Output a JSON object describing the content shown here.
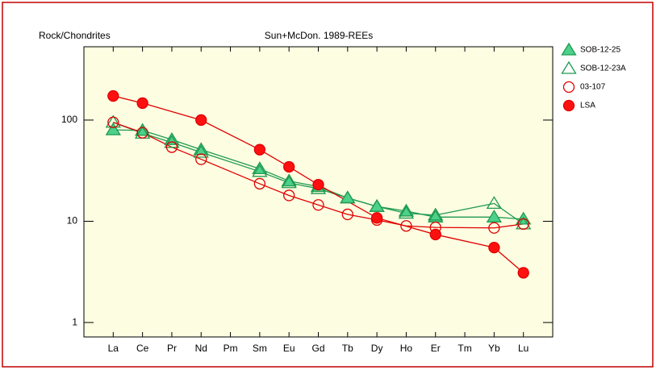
{
  "chart_data": {
    "type": "line",
    "title": "Sun+McDon. 1989-REEs",
    "y_label": "Rock/Chondrites",
    "categories": [
      "La",
      "Ce",
      "Pr",
      "Nd",
      "Pm",
      "Sm",
      "Eu",
      "Gd",
      "Tb",
      "Dy",
      "Ho",
      "Er",
      "Tm",
      "Yb",
      "Lu"
    ],
    "log_y": true,
    "connect_gaps": true,
    "ylim": [
      0.72,
      530
    ],
    "yticks": [
      1,
      10,
      100
    ],
    "series": [
      {
        "name": "SOB-12-25",
        "color": "#1f9a50",
        "fill": "#4cd08a",
        "marker": "triangle",
        "values": [
          80,
          79,
          64,
          51,
          null,
          33,
          25,
          22,
          17,
          14,
          12.6,
          11,
          null,
          11,
          10.5
        ]
      },
      {
        "name": "SOB-12-23A",
        "color": "#1f9a50",
        "fill": "none",
        "marker": "triangle",
        "values": [
          95,
          74,
          60,
          48,
          null,
          31,
          24,
          21,
          17,
          14,
          12,
          11.5,
          null,
          15,
          9.4
        ]
      },
      {
        "name": "03-107",
        "color": "#e00000",
        "fill": "none",
        "marker": "circle",
        "values": [
          95,
          75,
          54,
          41,
          null,
          23.5,
          18,
          14.5,
          11.7,
          10.3,
          9,
          8.7,
          null,
          8.6,
          9.4
        ]
      },
      {
        "name": "LSA",
        "color": "#e00000",
        "fill": "#ff1010",
        "marker": "circle",
        "values": [
          173,
          147,
          null,
          100,
          null,
          51,
          34.5,
          23,
          null,
          10.8,
          null,
          7.4,
          null,
          5.5,
          3.1
        ]
      }
    ]
  }
}
